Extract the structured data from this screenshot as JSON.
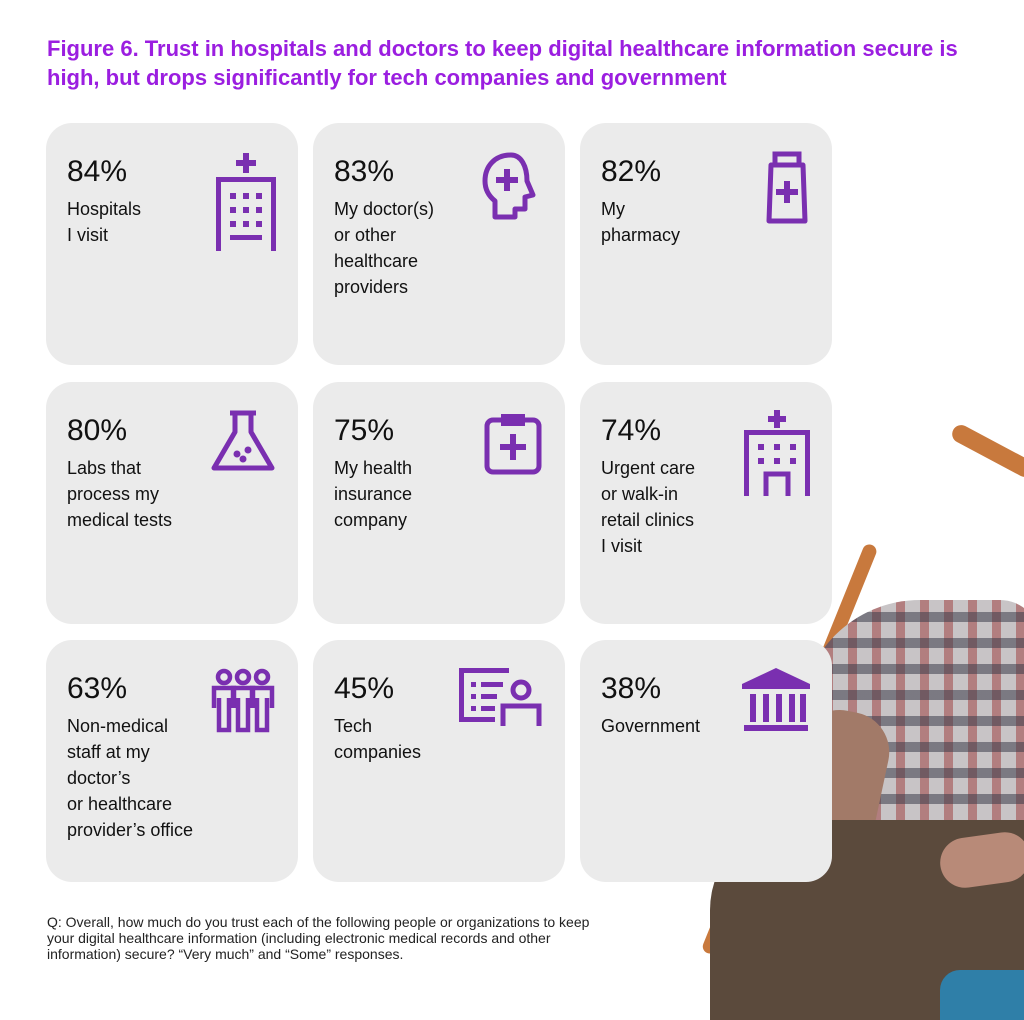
{
  "title": "Figure 6. Trust in hospitals and doctors to keep digital healthcare information secure is high, but drops significantly for tech companies and government",
  "accent_color": "#7a2fb0",
  "title_color": "#9b1ee0",
  "card_color": "#ebebeb",
  "chart_data": {
    "type": "table",
    "unit": "%",
    "categories": [
      "Hospitals I visit",
      "My doctor(s) or other healthcare providers",
      "My pharmacy",
      "Labs that process my medical tests",
      "My health insurance company",
      "Urgent care or walk-in retail clinics I visit",
      "Non-medical staff at my doctor's or healthcare provider's office",
      "Tech companies",
      "Government"
    ],
    "values": [
      84,
      83,
      82,
      80,
      75,
      74,
      63,
      45,
      38
    ]
  },
  "cards": [
    {
      "pct": "84%",
      "label": "Hospitals\nI visit",
      "icon": "hospital-building-icon"
    },
    {
      "pct": "83%",
      "label": "My doctor(s)\nor other\nhealthcare\nproviders",
      "icon": "head-medical-cross-icon"
    },
    {
      "pct": "82%",
      "label": "My\npharmacy",
      "icon": "medicine-bottle-icon"
    },
    {
      "pct": "80%",
      "label": "Labs that\nprocess my\nmedical tests",
      "icon": "lab-flask-icon"
    },
    {
      "pct": "75%",
      "label": "My health\ninsurance\ncompany",
      "icon": "clipboard-cross-icon"
    },
    {
      "pct": "74%",
      "label": "Urgent care\nor walk-in\nretail clinics\nI visit",
      "icon": "clinic-building-icon"
    },
    {
      "pct": "63%",
      "label": "Non-medical\nstaff at my\ndoctor’s\nor healthcare\nprovider’s office",
      "icon": "staff-group-icon"
    },
    {
      "pct": "45%",
      "label": "Tech\ncompanies",
      "icon": "tech-list-person-icon"
    },
    {
      "pct": "38%",
      "label": "Government",
      "icon": "government-building-icon"
    }
  ],
  "footnote": "Q: Overall, how much do you trust each of the following people or organizations to keep your digital healthcare information (including electronic medical records and other information) secure? “Very much” and “Some” responses."
}
